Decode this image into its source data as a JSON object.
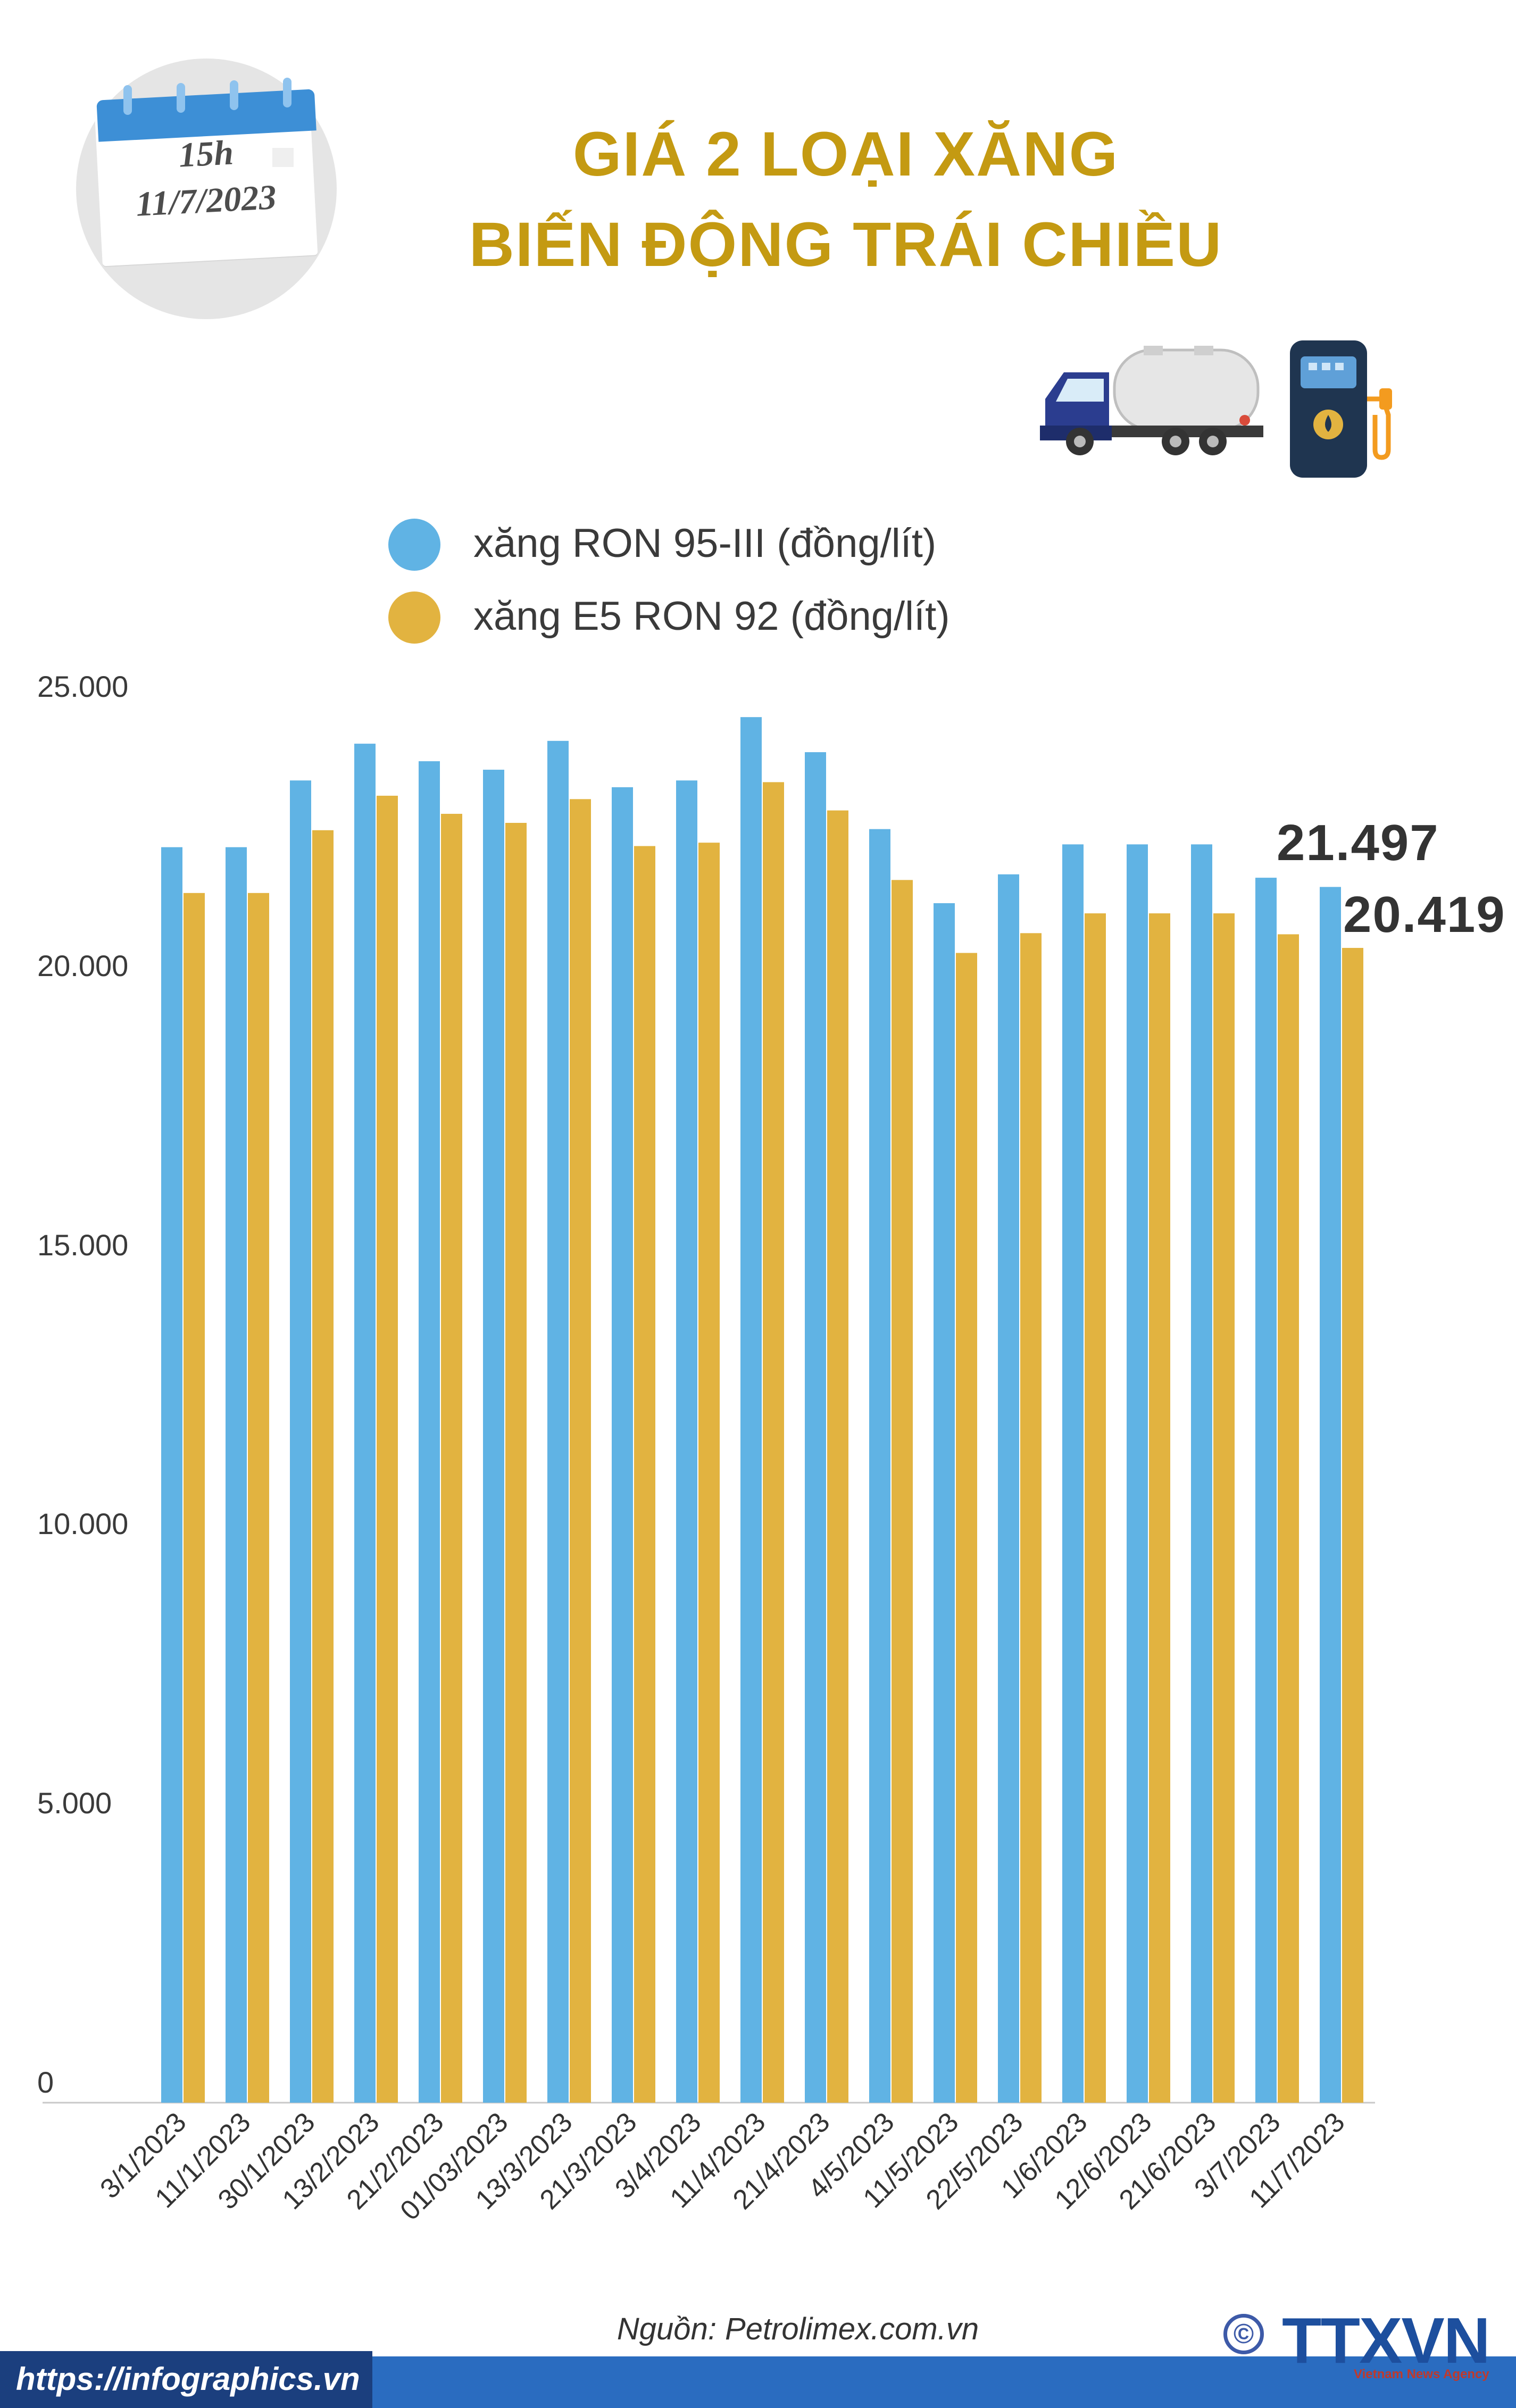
{
  "badge": {
    "time": "15h",
    "date": "11/7/2023"
  },
  "title": {
    "line1": "GIÁ 2 LOẠI XĂNG",
    "line2": "BIẾN ĐỘNG TRÁI CHIỀU"
  },
  "icons": {
    "truck": "fuel-tanker-truck-icon",
    "pump": "fuel-pump-icon"
  },
  "colors": {
    "ron95": "#60b3e4",
    "e5": "#e2b340",
    "title": "#c49a12",
    "footer": "#2a6cc0"
  },
  "chart_data": {
    "type": "bar",
    "categories": [
      "3/1/2023",
      "11/1/2023",
      "30/1/2023",
      "13/2/2023",
      "21/2/2023",
      "01/03/2023",
      "13/3/2023",
      "21/3/2023",
      "3/4/2023",
      "11/4/2023",
      "21/4/2023",
      "4/5/2023",
      "11/5/2023",
      "22/5/2023",
      "1/6/2023",
      "12/6/2023",
      "21/6/2023",
      "3/7/2023",
      "11/7/2023"
    ],
    "series": [
      {
        "name": "xăng RON 95-III (đồng/lít)",
        "color": "#60b3e4",
        "values": [
          22200,
          22200,
          23380,
          24030,
          23720,
          23570,
          24080,
          23260,
          23380,
          24500,
          23880,
          22520,
          21210,
          21720,
          22250,
          22250,
          22250,
          21660,
          21497
        ]
      },
      {
        "name": "xăng E5 RON 92 (đồng/lít)",
        "color": "#e2b340",
        "values": [
          21390,
          21390,
          22500,
          23110,
          22790,
          22630,
          23050,
          22220,
          22280,
          23350,
          22850,
          21620,
          20330,
          20680,
          21030,
          21030,
          21030,
          20660,
          20419
        ]
      }
    ],
    "ylim": [
      0,
      25000
    ],
    "yticks": [
      "0",
      "5.000",
      "10.000",
      "15.000",
      "20.000",
      "25.000"
    ],
    "end_labels": {
      "ron95": "21.497",
      "e5": "20.419"
    },
    "legend": "top"
  },
  "source": "Nguồn: Petrolimex.com.vn",
  "footer": {
    "url": "https://infographics.vn",
    "brand": "TTXVN",
    "brand_sub": "Vietnam News Agency",
    "copyright": "©"
  }
}
